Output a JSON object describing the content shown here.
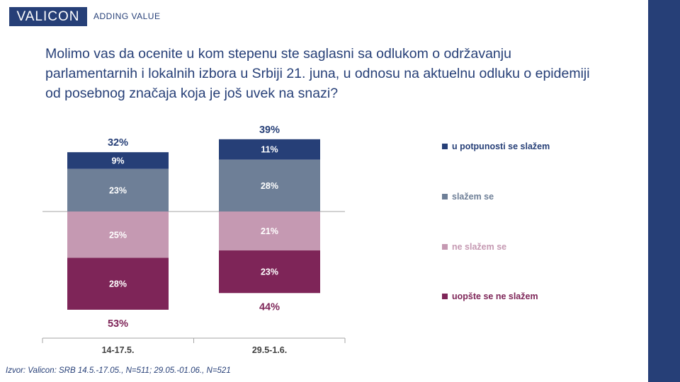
{
  "brand": {
    "logo_text": "VALICON",
    "tagline": "ADDING VALUE",
    "color": "#263f77"
  },
  "question": "Molimo vas da ocenite u kom stepenu ste saglasni sa odlukom o održavanju parlamentarnih i lokalnih izbora u Srbiji 21. juna, u odnosu na aktuelnu odluku o epidemiji od posebnog značaja koja je još uvek na snazi?",
  "footnote": "Izvor: Valicon: SRB 14.5.-17.05., N=511; 29.05.-01.06., N=521",
  "chart_data": {
    "type": "bar",
    "stacked": true,
    "diverging": true,
    "categories": [
      "14-17.5.",
      "29.5-1.6."
    ],
    "series": [
      {
        "name": "u potpunosti se slažem",
        "color": "#263f77",
        "direction": "up",
        "values": [
          9,
          11
        ],
        "labels": [
          "9%",
          "11%"
        ]
      },
      {
        "name": "slažem se",
        "color": "#6e7f97",
        "direction": "up",
        "values": [
          23,
          28
        ],
        "labels": [
          "23%",
          "28%"
        ]
      },
      {
        "name": "ne slažem se",
        "color": "#c599b2",
        "direction": "down",
        "values": [
          25,
          21
        ],
        "labels": [
          "25%",
          "21%"
        ]
      },
      {
        "name": "uopšte se ne slažem",
        "color": "#7e2558",
        "direction": "down",
        "values": [
          28,
          23
        ],
        "labels": [
          "28%",
          "23%"
        ]
      }
    ],
    "totals_agree": [
      "32%",
      "39%"
    ],
    "totals_disagree": [
      "53%",
      "44%"
    ],
    "agree_total_color": "#263f77",
    "disagree_total_color": "#7e2558",
    "legend_position": "right"
  }
}
